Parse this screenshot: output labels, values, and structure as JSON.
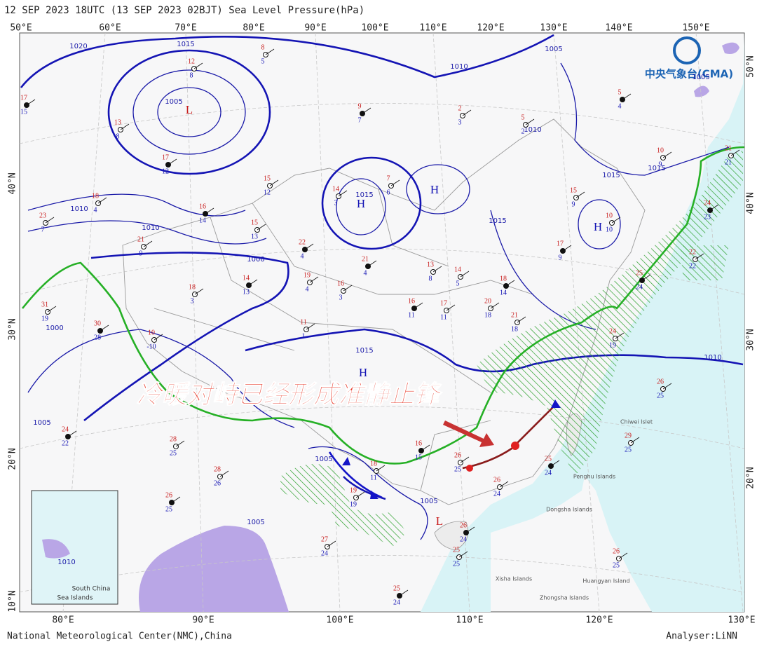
{
  "header": {
    "title": "12 SEP 2023 18UTC  (13 SEP 2023 02BJT) Sea Level Pressure(hPa)"
  },
  "top_lon_labels": [
    "50°E",
    "60°E",
    "70°E",
    "80°E",
    "90°E",
    "100°E",
    "110°E",
    "120°E",
    "130°E",
    "140°E",
    "150°E"
  ],
  "bottom_lon_labels": [
    "80°E",
    "90°E",
    "100°E",
    "110°E",
    "120°E",
    "130°E"
  ],
  "left_lat_labels": [
    "40°N",
    "30°N",
    "20°N",
    "10°N"
  ],
  "right_lat_labels": [
    "50°N",
    "40°N",
    "30°N",
    "20°N"
  ],
  "logo": "中央气象台(CMA)",
  "annotation": "冷暖对峙已经形成准静止锋",
  "pressure_centers": [
    "L",
    "H",
    "H",
    "H",
    "H",
    "L"
  ],
  "isobar_labels": [
    "1020",
    "1015",
    "1010",
    "1005",
    "1005",
    "1000",
    "1015",
    "1015",
    "1010",
    "1005",
    "1010",
    "1000",
    "1005",
    "1015",
    "1005",
    "1010",
    "1015",
    "1015",
    "1010",
    "1005",
    "1005"
  ],
  "place_labels": [
    "Chiwei Islet",
    "Penghu Islands",
    "Dongsha Islands",
    "Xisha Islands",
    "Huangyan Island",
    "Zhongsha Islands"
  ],
  "inset": {
    "label": "South China",
    "label2": "Sea Islands",
    "isobar": "1010"
  },
  "stations": [
    [
      "17",
      "15"
    ],
    [
      "13",
      "8"
    ],
    [
      "12",
      "8"
    ],
    [
      "17",
      "12"
    ],
    [
      "18",
      "4"
    ],
    [
      "23",
      "7"
    ],
    [
      "16",
      "14"
    ],
    [
      "15",
      "13"
    ],
    [
      "15",
      "12"
    ],
    [
      "22",
      "4"
    ],
    [
      "21",
      "9"
    ],
    [
      "18",
      "3"
    ],
    [
      "14",
      "13"
    ],
    [
      "19",
      "4"
    ],
    [
      "16",
      "3"
    ],
    [
      "21",
      "4"
    ],
    [
      "14",
      "3"
    ],
    [
      "7",
      "6"
    ],
    [
      "9",
      "7"
    ],
    [
      "2",
      "3"
    ],
    [
      "5",
      "2"
    ],
    [
      "5",
      "4"
    ],
    [
      "10",
      "9"
    ],
    [
      "21",
      "21"
    ],
    [
      "24",
      "23"
    ],
    [
      "15",
      "9"
    ],
    [
      "10",
      "10"
    ],
    [
      "17",
      "9"
    ],
    [
      "13",
      "8"
    ],
    [
      "14",
      "5"
    ],
    [
      "18",
      "14"
    ],
    [
      "20",
      "18"
    ],
    [
      "21",
      "18"
    ],
    [
      "16",
      "11"
    ],
    [
      "17",
      "11"
    ],
    [
      "24",
      "19"
    ],
    [
      "25",
      "24"
    ],
    [
      "22",
      "22"
    ],
    [
      "31",
      "19"
    ],
    [
      "30",
      "28"
    ],
    [
      "10",
      "-10"
    ],
    [
      "11",
      "1"
    ],
    [
      "24",
      "22"
    ],
    [
      "28",
      "25"
    ],
    [
      "28",
      "26"
    ],
    [
      "26",
      "25"
    ],
    [
      "18",
      "11"
    ],
    [
      "19",
      "19"
    ],
    [
      "16",
      "15"
    ],
    [
      "26",
      "25"
    ],
    [
      "26",
      "24"
    ],
    [
      "26",
      "24"
    ],
    [
      "25",
      "25"
    ],
    [
      "27",
      "24"
    ],
    [
      "25",
      "24"
    ],
    [
      "26",
      "25"
    ],
    [
      "29",
      "25"
    ],
    [
      "25",
      "24"
    ],
    [
      "26",
      "25"
    ],
    [
      "8",
      "5"
    ]
  ],
  "footer": {
    "left": "National Meteorological Center(NMC),China",
    "right": "Analyser:LiNN"
  }
}
